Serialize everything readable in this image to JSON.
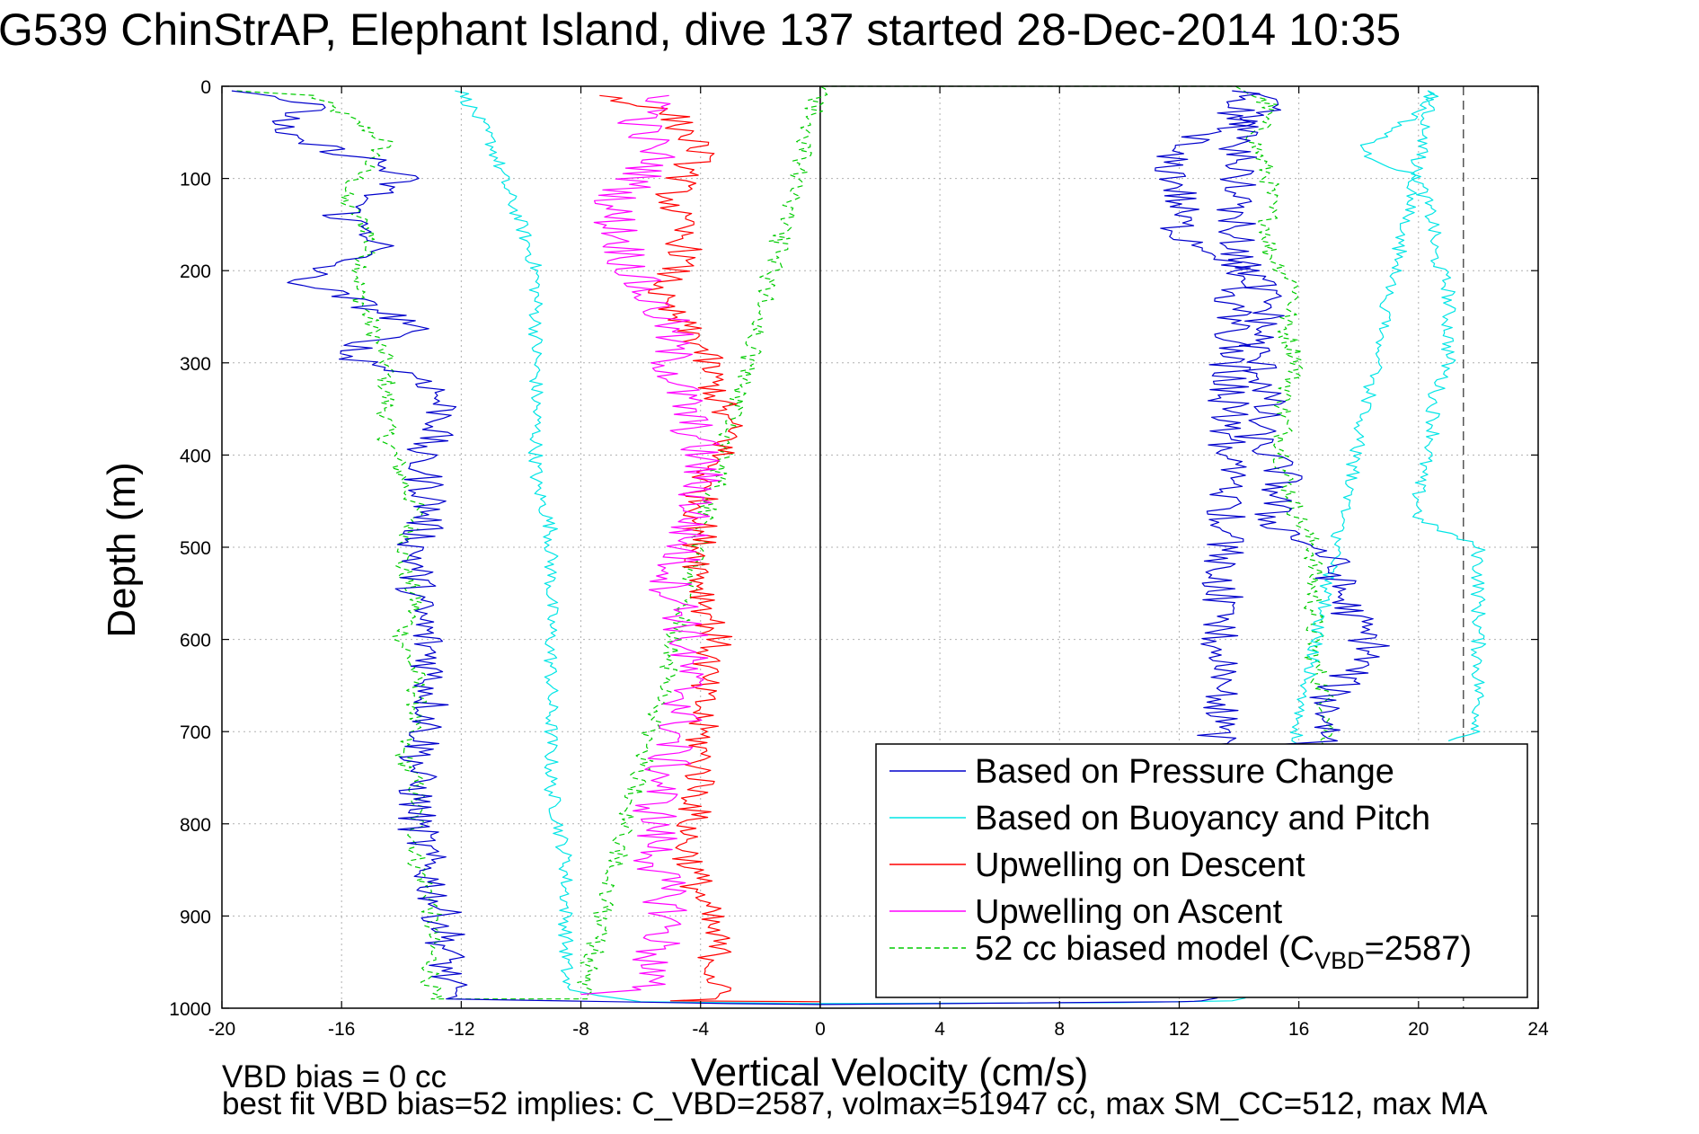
{
  "title": "G539 ChinStrAP, Elephant Island, dive 137 started 28-Dec-2014 10:35",
  "footnote": {
    "line1": "VBD bias = 0 cc",
    "line2": "best fit VBD bias=52 implies: C_VBD=2587, volmax=51947 cc, max SM_CC=512, max MA"
  },
  "chart_data": {
    "type": "line",
    "xlabel": "Vertical Velocity (cm/s)",
    "ylabel": "Depth (m)",
    "xlim": [
      -20,
      24
    ],
    "ylim": [
      1000,
      0
    ],
    "y_reversed": true,
    "grid": true,
    "xticks": [
      -20,
      -16,
      -12,
      -8,
      -4,
      0,
      4,
      8,
      12,
      16,
      20,
      24
    ],
    "yticks": [
      0,
      100,
      200,
      300,
      400,
      500,
      600,
      700,
      800,
      900,
      1000
    ],
    "legend_position": "bottom-right",
    "reference_lines": [
      {
        "axis": "x",
        "value": 0,
        "style": "solid",
        "color": "#000000"
      },
      {
        "axis": "x",
        "value": 21.5,
        "style": "dashed",
        "color": "#555555"
      }
    ],
    "series": [
      {
        "name": "Based on Pressure Change",
        "color": "#0000cc",
        "style": "solid",
        "noise": 0.7,
        "points": [
          [
            -19,
            5
          ],
          [
            -17,
            20
          ],
          [
            -18.5,
            50
          ],
          [
            -15,
            80
          ],
          [
            -14,
            100
          ],
          [
            -16,
            140
          ],
          [
            -14.5,
            170
          ],
          [
            -17.5,
            210
          ],
          [
            -15,
            240
          ],
          [
            -13.5,
            260
          ],
          [
            -16,
            290
          ],
          [
            -13,
            320
          ],
          [
            -12.5,
            360
          ],
          [
            -13.5,
            400
          ],
          [
            -13,
            450
          ],
          [
            -13.5,
            500
          ],
          [
            -13.5,
            560
          ],
          [
            -13,
            620
          ],
          [
            -13,
            680
          ],
          [
            -13.5,
            740
          ],
          [
            -13.5,
            800
          ],
          [
            -13,
            860
          ],
          [
            -12.5,
            920
          ],
          [
            -12.5,
            990
          ],
          [
            -3,
            995
          ],
          [
            0,
            996
          ],
          [
            12,
            993
          ],
          [
            13,
            992
          ],
          [
            14,
            5
          ],
          [
            15,
            20
          ],
          [
            14,
            40
          ],
          [
            11.5,
            70
          ],
          [
            12,
            110
          ],
          [
            12,
            160
          ],
          [
            14.5,
            200
          ],
          [
            15,
            240
          ],
          [
            14.5,
            290
          ],
          [
            15,
            330
          ],
          [
            14.5,
            380
          ],
          [
            15.5,
            420
          ],
          [
            15,
            470
          ],
          [
            17,
            510
          ],
          [
            17.5,
            560
          ],
          [
            18.5,
            610
          ],
          [
            17,
            660
          ],
          [
            17,
            710
          ],
          [
            13,
            720
          ],
          [
            13.5,
            722
          ]
        ]
      },
      {
        "name": "Based on Buoyancy and Pitch",
        "color": "#00e5e5",
        "style": "solid",
        "noise": 0.25,
        "points": [
          [
            -12,
            5
          ],
          [
            -11,
            60
          ],
          [
            -10.5,
            110
          ],
          [
            -10,
            150
          ],
          [
            -9.5,
            200
          ],
          [
            -9.5,
            260
          ],
          [
            -9.5,
            320
          ],
          [
            -9.5,
            380
          ],
          [
            -9.5,
            430
          ],
          [
            -9,
            480
          ],
          [
            -9,
            560
          ],
          [
            -9,
            620
          ],
          [
            -9,
            700
          ],
          [
            -9,
            760
          ],
          [
            -8.5,
            840
          ],
          [
            -8.5,
            900
          ],
          [
            -8.5,
            980
          ],
          [
            -6,
            993
          ],
          [
            0,
            995
          ],
          [
            10,
            994
          ],
          [
            14,
            992
          ],
          [
            20.5,
            5
          ],
          [
            20,
            30
          ],
          [
            18,
            70
          ],
          [
            20,
            100
          ],
          [
            20.5,
            150
          ],
          [
            20.5,
            180
          ],
          [
            21,
            220
          ],
          [
            21,
            250
          ],
          [
            21,
            300
          ],
          [
            20.5,
            340
          ],
          [
            20.5,
            380
          ],
          [
            20,
            430
          ],
          [
            20,
            470
          ],
          [
            22,
            500
          ],
          [
            22,
            560
          ],
          [
            22,
            620
          ],
          [
            22,
            700
          ],
          [
            21,
            710
          ]
        ]
      },
      {
        "name": "Upwelling on Descent",
        "color": "#ff0000",
        "style": "solid",
        "noise": 0.6,
        "points": [
          [
            -7,
            10
          ],
          [
            -5,
            30
          ],
          [
            -4,
            70
          ],
          [
            -5,
            120
          ],
          [
            -4.5,
            180
          ],
          [
            -5.5,
            230
          ],
          [
            -4,
            280
          ],
          [
            -3.5,
            330
          ],
          [
            -3,
            380
          ],
          [
            -4,
            430
          ],
          [
            -4,
            480
          ],
          [
            -4,
            530
          ],
          [
            -3.5,
            600
          ],
          [
            -4,
            650
          ],
          [
            -4,
            700
          ],
          [
            -4,
            760
          ],
          [
            -4.5,
            820
          ],
          [
            -4,
            880
          ],
          [
            -3.5,
            930
          ],
          [
            -3.5,
            990
          ],
          [
            -5,
            992
          ],
          [
            0,
            993
          ]
        ]
      },
      {
        "name": "Upwelling on Ascent",
        "color": "#ff00ff",
        "style": "solid",
        "noise": 0.8,
        "points": [
          [
            -5,
            10
          ],
          [
            -6,
            40
          ],
          [
            -5.5,
            80
          ],
          [
            -7,
            130
          ],
          [
            -6.5,
            180
          ],
          [
            -6,
            220
          ],
          [
            -5,
            260
          ],
          [
            -5,
            300
          ],
          [
            -4.5,
            350
          ],
          [
            -4,
            400
          ],
          [
            -4,
            440
          ],
          [
            -4.5,
            490
          ],
          [
            -5,
            540
          ],
          [
            -4.5,
            580
          ],
          [
            -4.5,
            620
          ],
          [
            -4.5,
            670
          ],
          [
            -5,
            720
          ],
          [
            -5.5,
            780
          ],
          [
            -5.5,
            840
          ],
          [
            -5,
            900
          ],
          [
            -6,
            980
          ],
          [
            -8,
            985
          ]
        ]
      },
      {
        "name": "52 cc biased model (CVBD=2587)",
        "color": "#00cc00",
        "style": "dashed",
        "noise": 0.35,
        "points": [
          [
            -19.5,
            5
          ],
          [
            -17,
            10
          ],
          [
            -16,
            30
          ],
          [
            -14.5,
            60
          ],
          [
            -15.5,
            100
          ],
          [
            -16,
            120
          ],
          [
            -15,
            160
          ],
          [
            -15.5,
            220
          ],
          [
            -15,
            260
          ],
          [
            -14.5,
            300
          ],
          [
            -14.5,
            340
          ],
          [
            -14.5,
            380
          ],
          [
            -14,
            420
          ],
          [
            -13.5,
            460
          ],
          [
            -14,
            520
          ],
          [
            -13.5,
            560
          ],
          [
            -14,
            600
          ],
          [
            -13.5,
            640
          ],
          [
            -13.5,
            680
          ],
          [
            -14,
            720
          ],
          [
            -13.5,
            760
          ],
          [
            -13.5,
            800
          ],
          [
            -13.5,
            840
          ],
          [
            -13,
            880
          ],
          [
            -13,
            920
          ],
          [
            -13,
            990
          ],
          [
            -8,
            990
          ],
          [
            0,
            0
          ],
          [
            14,
            0
          ],
          [
            15,
            20
          ],
          [
            14.5,
            60
          ],
          [
            15,
            100
          ],
          [
            15,
            140
          ],
          [
            15,
            180
          ],
          [
            16,
            220
          ],
          [
            15.5,
            260
          ],
          [
            16,
            300
          ],
          [
            15.5,
            340
          ],
          [
            15.5,
            380
          ],
          [
            15.5,
            420
          ],
          [
            16,
            470
          ],
          [
            16.5,
            500
          ],
          [
            16.5,
            560
          ],
          [
            16.5,
            620
          ],
          [
            17,
            680
          ],
          [
            17,
            720
          ]
        ]
      }
    ]
  }
}
